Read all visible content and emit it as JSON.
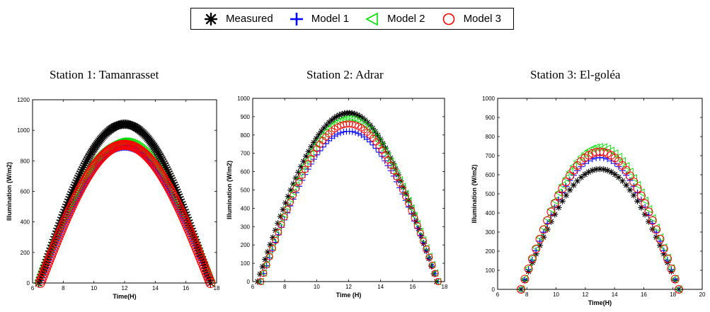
{
  "legend": {
    "items": [
      {
        "name": "Measured",
        "marker": "asterisk",
        "color": "#000000"
      },
      {
        "name": "Model 1",
        "marker": "plus",
        "color": "#0000ff"
      },
      {
        "name": "Model 2",
        "marker": "triangle-left",
        "color": "#00dd00"
      },
      {
        "name": "Model 3",
        "marker": "circle",
        "color": "#ff0000"
      }
    ]
  },
  "chart_data": [
    {
      "type": "scatter",
      "title": "Station 1: Tamanrasset",
      "xlabel": "Time(H)",
      "ylabel": "Illumination (W/m2)",
      "xlim": [
        6,
        18
      ],
      "ylim": [
        0,
        1200
      ],
      "xticks": [
        6,
        8,
        10,
        12,
        14,
        16,
        18
      ],
      "yticks": [
        0,
        200,
        400,
        600,
        800,
        1000,
        1200
      ],
      "grid": false,
      "series": [
        {
          "name": "Measured",
          "start": 6.4,
          "end": 17.6,
          "peak_x": 12,
          "peak": 1040,
          "point_count": 170
        },
        {
          "name": "Model 1",
          "start": 6.5,
          "end": 17.6,
          "peak_x": 12,
          "peak": 890,
          "point_count": 170
        },
        {
          "name": "Model 2",
          "start": 6.3,
          "end": 17.7,
          "peak_x": 12,
          "peak": 930,
          "point_count": 170
        },
        {
          "name": "Model 3",
          "start": 6.5,
          "end": 17.6,
          "peak_x": 12,
          "peak": 905,
          "point_count": 170
        }
      ]
    },
    {
      "type": "scatter",
      "title": "Station 2: Adrar",
      "xlabel": "Time (H)",
      "ylabel": "Illumination (W/m2)",
      "xlim": [
        6,
        18
      ],
      "ylim": [
        0,
        1000
      ],
      "xticks": [
        6,
        8,
        10,
        12,
        14,
        16,
        18
      ],
      "yticks": [
        0,
        100,
        200,
        300,
        400,
        500,
        600,
        700,
        800,
        900,
        1000
      ],
      "grid": false,
      "series": [
        {
          "name": "Measured",
          "start": 6.3,
          "end": 17.5,
          "peak_x": 12,
          "peak": 920,
          "point_count": 70
        },
        {
          "name": "Model 1",
          "start": 6.5,
          "end": 17.6,
          "peak_x": 12,
          "peak": 820,
          "point_count": 60
        },
        {
          "name": "Model 2",
          "start": 6.5,
          "end": 17.6,
          "peak_x": 12,
          "peak": 890,
          "point_count": 60
        },
        {
          "name": "Model 3",
          "start": 6.5,
          "end": 17.6,
          "peak_x": 12,
          "peak": 860,
          "point_count": 60
        }
      ]
    },
    {
      "type": "scatter",
      "title": "Station 3: El-goléa",
      "xlabel": "Time(H)",
      "ylabel": "Illumination (W/m2)",
      "xlim": [
        6,
        20
      ],
      "ylim": [
        0,
        1000
      ],
      "xticks": [
        6,
        8,
        10,
        12,
        14,
        16,
        18,
        20
      ],
      "yticks": [
        0,
        100,
        200,
        300,
        400,
        500,
        600,
        700,
        800,
        900,
        1000
      ],
      "grid": false,
      "series": [
        {
          "name": "Measured",
          "start": 7.6,
          "end": 18.4,
          "peak_x": 13,
          "peak": 630,
          "point_count": 42
        },
        {
          "name": "Model 1",
          "start": 7.6,
          "end": 18.4,
          "peak_x": 13,
          "peak": 690,
          "point_count": 42
        },
        {
          "name": "Model 2",
          "start": 7.6,
          "end": 18.4,
          "peak_x": 13,
          "peak": 745,
          "point_count": 42
        },
        {
          "name": "Model 3",
          "start": 7.6,
          "end": 18.4,
          "peak_x": 13,
          "peak": 720,
          "point_count": 42
        }
      ]
    }
  ]
}
